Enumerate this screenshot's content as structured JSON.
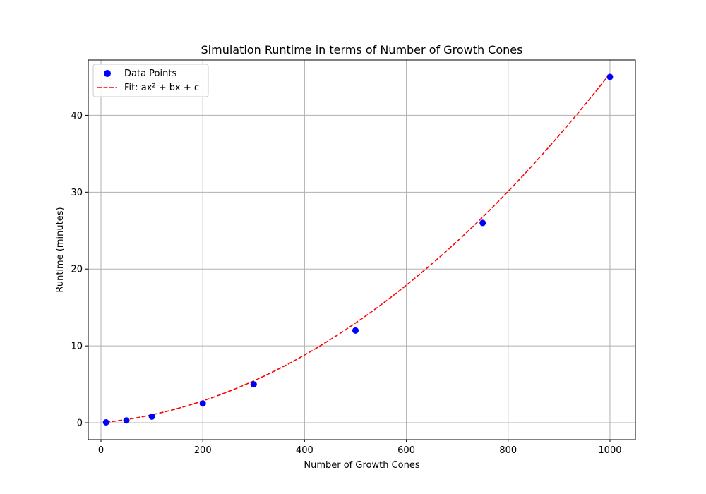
{
  "chart_data": {
    "type": "scatter",
    "title": "Simulation Runtime in terms of Number of Growth Cones",
    "xlabel": "Number of Growth Cones",
    "ylabel": "Runtime (minutes)",
    "xlim": [
      -25,
      1050
    ],
    "ylim": [
      -2.2,
      47.2
    ],
    "xticks": [
      0,
      200,
      400,
      600,
      800,
      1000
    ],
    "yticks": [
      0,
      10,
      20,
      30,
      40
    ],
    "grid": true,
    "legend_position": "top-left",
    "series": [
      {
        "name": "Data Points",
        "kind": "scatter",
        "color": "#0000ff",
        "x": [
          10,
          50,
          100,
          200,
          300,
          500,
          750,
          1000
        ],
        "y": [
          0.05,
          0.3,
          0.8,
          2.5,
          5.0,
          12.0,
          26.0,
          45.0
        ]
      },
      {
        "name": "Fit: ax² + bx + c",
        "kind": "line",
        "style": "dashed",
        "color": "#ff0000",
        "coefficients": {
          "a": 3.9e-05,
          "b": 0.00644,
          "c": 0.0
        },
        "x_range": [
          10,
          1000
        ]
      }
    ]
  }
}
